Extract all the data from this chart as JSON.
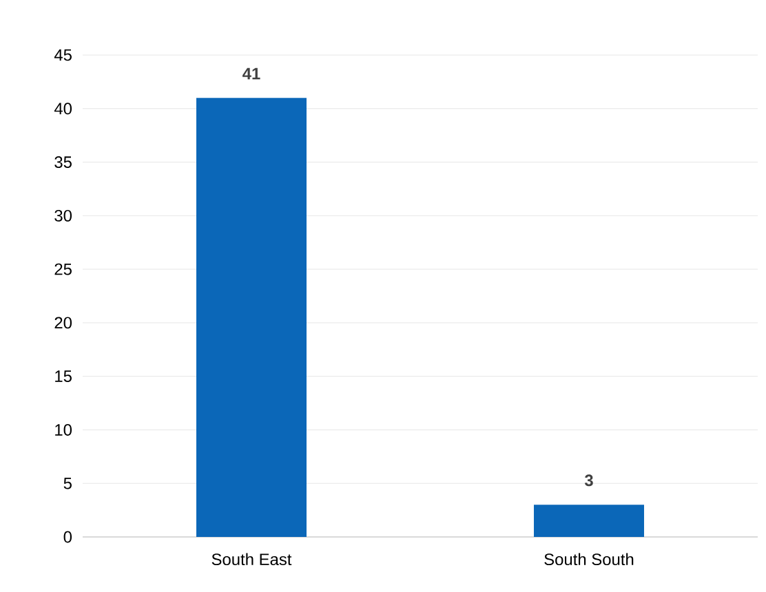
{
  "chart_data": {
    "type": "bar",
    "categories": [
      "South East",
      "South South"
    ],
    "values": [
      41,
      3
    ],
    "color": "#0b67b8",
    "ylim": [
      0,
      45
    ],
    "yticks": [
      0,
      5,
      10,
      15,
      20,
      25,
      30,
      35,
      40,
      45
    ],
    "grid": "y",
    "data_labels": true
  }
}
